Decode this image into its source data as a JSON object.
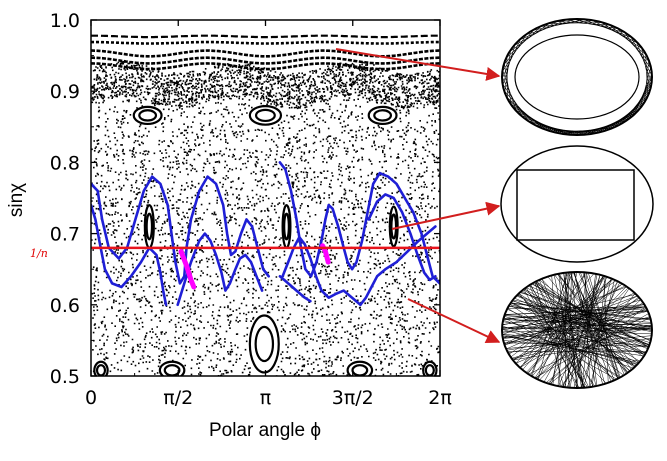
{
  "chart_data": {
    "type": "scatter",
    "title": "",
    "xlabel": "Polar angle ϕ",
    "ylabel": "sinχ",
    "xlim": [
      0,
      6.2832
    ],
    "ylim": [
      0.5,
      1.0
    ],
    "x_ticks": [
      {
        "value": 0,
        "label": "0"
      },
      {
        "value": 1.5708,
        "label": "π/2"
      },
      {
        "value": 3.1416,
        "label": "π"
      },
      {
        "value": 4.7124,
        "label": "3π/2"
      },
      {
        "value": 6.2832,
        "label": "2π"
      }
    ],
    "y_ticks": [
      {
        "value": 0.5,
        "label": "0.5"
      },
      {
        "value": 0.6,
        "label": "0.6"
      },
      {
        "value": 0.7,
        "label": "0.7"
      },
      {
        "value": 0.8,
        "label": "0.8"
      },
      {
        "value": 0.9,
        "label": "0.9"
      },
      {
        "value": 1.0,
        "label": "1.0"
      }
    ],
    "grid": false,
    "colors": {
      "points": "#000000",
      "separatrix": "#1f1fd6",
      "highlight": "#ff00ff",
      "critical_line": "#e8141c",
      "arrow": "#d21e1e"
    },
    "critical_line": {
      "y": 0.68,
      "label": "1/n"
    },
    "invariant_curves": [
      0.977,
      0.968,
      0.953,
      0.943,
      0.935
    ],
    "islands": [
      {
        "cx": 1.02,
        "cy": 0.866,
        "rx": 0.25,
        "ry": 0.012
      },
      {
        "cx": 3.14,
        "cy": 0.866,
        "rx": 0.28,
        "ry": 0.013
      },
      {
        "cx": 5.25,
        "cy": 0.866,
        "rx": 0.25,
        "ry": 0.012
      },
      {
        "cx": 1.05,
        "cy": 0.71,
        "rx": 0.08,
        "ry": 0.03
      },
      {
        "cx": 3.52,
        "cy": 0.71,
        "rx": 0.07,
        "ry": 0.03
      },
      {
        "cx": 5.45,
        "cy": 0.71,
        "rx": 0.07,
        "ry": 0.028
      },
      {
        "cx": 3.12,
        "cy": 0.545,
        "rx": 0.26,
        "ry": 0.04
      },
      {
        "cx": 0.18,
        "cy": 0.508,
        "rx": 0.12,
        "ry": 0.012
      },
      {
        "cx": 1.46,
        "cy": 0.508,
        "rx": 0.22,
        "ry": 0.012
      },
      {
        "cx": 4.84,
        "cy": 0.508,
        "rx": 0.22,
        "ry": 0.012
      },
      {
        "cx": 6.1,
        "cy": 0.508,
        "rx": 0.12,
        "ry": 0.012
      }
    ],
    "separatrix": [
      [
        [
          0.0,
          0.77
        ],
        [
          0.12,
          0.76
        ],
        [
          0.2,
          0.72
        ],
        [
          0.32,
          0.68
        ],
        [
          0.5,
          0.665
        ],
        [
          0.65,
          0.68
        ],
        [
          0.8,
          0.72
        ],
        [
          0.95,
          0.76
        ],
        [
          1.1,
          0.78
        ],
        [
          1.25,
          0.77
        ],
        [
          1.38,
          0.74
        ],
        [
          1.45,
          0.7
        ],
        [
          1.52,
          0.66
        ],
        [
          1.6,
          0.63
        ],
        [
          1.68,
          0.64
        ],
        [
          1.72,
          0.68
        ],
        [
          1.8,
          0.72
        ],
        [
          1.95,
          0.76
        ],
        [
          2.1,
          0.78
        ],
        [
          2.25,
          0.77
        ],
        [
          2.38,
          0.74
        ],
        [
          2.45,
          0.7
        ],
        [
          2.52,
          0.67
        ],
        [
          2.6,
          0.675
        ],
        [
          2.7,
          0.7
        ],
        [
          2.8,
          0.72
        ],
        [
          2.9,
          0.71
        ],
        [
          3.0,
          0.68
        ],
        [
          3.1,
          0.65
        ],
        [
          3.2,
          0.64
        ]
      ],
      [
        [
          0.0,
          0.74
        ],
        [
          0.08,
          0.72
        ],
        [
          0.15,
          0.69
        ],
        [
          0.25,
          0.65
        ],
        [
          0.38,
          0.63
        ],
        [
          0.55,
          0.625
        ],
        [
          0.72,
          0.64
        ],
        [
          0.9,
          0.66
        ],
        [
          1.05,
          0.68
        ],
        [
          1.18,
          0.67
        ],
        [
          1.25,
          0.645
        ],
        [
          1.3,
          0.62
        ],
        [
          1.35,
          0.6
        ]
      ],
      [
        [
          1.56,
          0.6
        ],
        [
          1.68,
          0.63
        ],
        [
          1.8,
          0.66
        ],
        [
          1.95,
          0.69
        ],
        [
          2.05,
          0.7
        ],
        [
          2.15,
          0.69
        ],
        [
          2.25,
          0.67
        ],
        [
          2.35,
          0.645
        ],
        [
          2.42,
          0.62
        ],
        [
          2.5,
          0.63
        ],
        [
          2.6,
          0.65
        ],
        [
          2.68,
          0.665
        ],
        [
          2.78,
          0.67
        ],
        [
          2.88,
          0.66
        ],
        [
          2.98,
          0.64
        ],
        [
          3.08,
          0.62
        ]
      ],
      [
        [
          3.4,
          0.8
        ],
        [
          3.5,
          0.79
        ],
        [
          3.6,
          0.76
        ],
        [
          3.7,
          0.72
        ],
        [
          3.78,
          0.68
        ],
        [
          3.86,
          0.65
        ],
        [
          3.96,
          0.64
        ],
        [
          4.06,
          0.66
        ],
        [
          4.15,
          0.69
        ],
        [
          4.22,
          0.72
        ],
        [
          4.28,
          0.74
        ],
        [
          4.35,
          0.735
        ],
        [
          4.45,
          0.71
        ],
        [
          4.55,
          0.68
        ],
        [
          4.62,
          0.66
        ],
        [
          4.7,
          0.65
        ],
        [
          4.78,
          0.66
        ],
        [
          4.88,
          0.69
        ],
        [
          4.98,
          0.73
        ],
        [
          5.08,
          0.77
        ],
        [
          5.2,
          0.785
        ],
        [
          5.35,
          0.78
        ],
        [
          5.5,
          0.77
        ],
        [
          5.65,
          0.75
        ],
        [
          5.8,
          0.73
        ],
        [
          5.95,
          0.7
        ],
        [
          6.05,
          0.67
        ],
        [
          6.15,
          0.64
        ],
        [
          6.28,
          0.63
        ]
      ],
      [
        [
          3.45,
          0.64
        ],
        [
          3.55,
          0.66
        ],
        [
          3.65,
          0.68
        ],
        [
          3.75,
          0.695
        ],
        [
          3.85,
          0.685
        ],
        [
          3.95,
          0.665
        ],
        [
          4.05,
          0.64
        ],
        [
          4.15,
          0.62
        ],
        [
          4.28,
          0.61
        ],
        [
          4.4,
          0.615
        ],
        [
          4.55,
          0.62
        ],
        [
          4.7,
          0.61
        ],
        [
          4.85,
          0.6
        ]
      ],
      [
        [
          3.4,
          0.64
        ],
        [
          3.55,
          0.63
        ],
        [
          3.7,
          0.62
        ],
        [
          3.85,
          0.61
        ],
        [
          3.95,
          0.605
        ]
      ],
      [
        [
          5.0,
          0.72
        ],
        [
          5.15,
          0.745
        ],
        [
          5.3,
          0.755
        ],
        [
          5.45,
          0.75
        ],
        [
          5.6,
          0.73
        ],
        [
          5.75,
          0.7
        ],
        [
          5.88,
          0.67
        ],
        [
          6.0,
          0.645
        ],
        [
          6.1,
          0.635
        ],
        [
          6.2,
          0.64
        ]
      ],
      [
        [
          4.85,
          0.6
        ],
        [
          4.95,
          0.61
        ],
        [
          5.05,
          0.625
        ],
        [
          5.15,
          0.64
        ],
        [
          5.3,
          0.65
        ],
        [
          5.5,
          0.66
        ],
        [
          5.7,
          0.675
        ],
        [
          5.9,
          0.69
        ],
        [
          6.05,
          0.7
        ],
        [
          6.2,
          0.71
        ]
      ]
    ],
    "highlight_segments": [
      [
        [
          1.62,
          0.675
        ],
        [
          1.72,
          0.655
        ],
        [
          1.8,
          0.635
        ],
        [
          1.85,
          0.625
        ]
      ],
      [
        [
          4.17,
          0.683
        ],
        [
          4.22,
          0.675
        ],
        [
          4.27,
          0.66
        ]
      ]
    ]
  },
  "insets": [
    {
      "name": "whispering-gallery-orbit",
      "points_to": {
        "x": 3.4,
        "y": 0.975
      }
    },
    {
      "name": "rectangular-orbit",
      "points_to": {
        "x": 5.45,
        "y": 0.71
      }
    },
    {
      "name": "chaotic-orbit",
      "points_to": {
        "x": 5.3,
        "y": 0.61
      }
    }
  ]
}
